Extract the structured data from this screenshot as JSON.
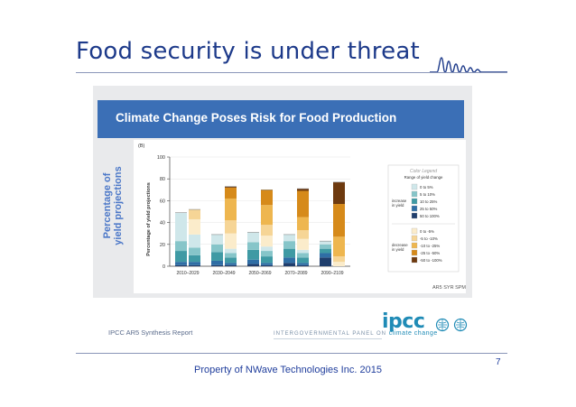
{
  "slide": {
    "title": "Food security is under threat",
    "footer": "Property of NWave Technologies Inc. 2015",
    "page_number": "7"
  },
  "panel": {
    "banner_title": "Climate Change Poses Risk for Food Production",
    "side_label": "Percentage of yield projections",
    "source_left": "IPCC AR5 Synthesis Report",
    "source_right": "AR5 SYR SPM",
    "org_text": "INTERGOVERNMENTAL PANEL ON",
    "org_text_accent": "climate change",
    "logo_text": "ipcc"
  },
  "colors": {
    "title_blue": "#1d3a8a",
    "banner_blue": "#3b6fb6",
    "inc_10_100": "#1f3e6d",
    "inc_25_50": "#2f6ea5",
    "inc_10_25": "#3f9aa4",
    "inc_5_10": "#86c5c9",
    "inc_0_5": "#cfe7ea",
    "dec_0_5": "#fbeccb",
    "dec_5_10": "#f6d596",
    "dec_10_25": "#eeb64f",
    "dec_25_50": "#d68a1a",
    "dec_50_100": "#6e3a0f"
  },
  "chart_data": {
    "type": "bar",
    "stacked": true,
    "panel_label": "(B)",
    "ylabel": "Percentage of yield projections",
    "ylim": [
      0,
      100
    ],
    "yticks": [
      0,
      20,
      40,
      60,
      80,
      100
    ],
    "categories": [
      "2010–2029",
      "2030–2049",
      "2050–2069",
      "2070–2089",
      "2090–2109"
    ],
    "groups": [
      "increase",
      "decrease"
    ],
    "series": [
      {
        "name": "50 to 100%",
        "group": "increase",
        "color_key": "inc_10_100",
        "values": [
          [
            1,
            1
          ],
          [
            1,
            1
          ],
          [
            2,
            1
          ],
          [
            3,
            1
          ],
          [
            8,
            0
          ]
        ]
      },
      {
        "name": "25 to 50%",
        "group": "increase",
        "color_key": "inc_25_50",
        "values": [
          [
            3,
            3
          ],
          [
            4,
            2
          ],
          [
            4,
            2
          ],
          [
            5,
            2
          ],
          [
            4,
            0
          ]
        ]
      },
      {
        "name": "10 to 25%",
        "group": "increase",
        "color_key": "inc_10_25",
        "values": [
          [
            10,
            6
          ],
          [
            8,
            5
          ],
          [
            9,
            6
          ],
          [
            8,
            5
          ],
          [
            4,
            0
          ]
        ]
      },
      {
        "name": "5 to 10%",
        "group": "increase",
        "color_key": "inc_5_10",
        "values": [
          [
            9,
            7
          ],
          [
            7,
            4
          ],
          [
            7,
            5
          ],
          [
            7,
            4
          ],
          [
            4,
            0
          ]
        ]
      },
      {
        "name": "0 to 5%",
        "group": "increase",
        "color_key": "inc_0_5",
        "values": [
          [
            26,
            12
          ],
          [
            9,
            4
          ],
          [
            9,
            4
          ],
          [
            6,
            3
          ],
          [
            3,
            0
          ]
        ]
      },
      {
        "name": "0 to -5%",
        "group": "decrease",
        "color_key": "dec_0_5",
        "values": [
          [
            0,
            14
          ],
          [
            0,
            14
          ],
          [
            0,
            10
          ],
          [
            0,
            10
          ],
          [
            0,
            4
          ]
        ]
      },
      {
        "name": "-5 to -10%",
        "group": "decrease",
        "color_key": "dec_5_10",
        "values": [
          [
            0,
            9
          ],
          [
            0,
            12
          ],
          [
            0,
            10
          ],
          [
            0,
            8
          ],
          [
            0,
            5
          ]
        ]
      },
      {
        "name": "-10 to -25%",
        "group": "decrease",
        "color_key": "dec_10_25",
        "values": [
          [
            0,
            0
          ],
          [
            0,
            20
          ],
          [
            0,
            18
          ],
          [
            0,
            12
          ],
          [
            0,
            18
          ]
        ]
      },
      {
        "name": "-25 to -50%",
        "group": "decrease",
        "color_key": "dec_25_50",
        "values": [
          [
            0,
            0
          ],
          [
            0,
            10
          ],
          [
            0,
            14
          ],
          [
            0,
            24
          ],
          [
            0,
            30
          ]
        ]
      },
      {
        "name": "-50 to -100%",
        "group": "decrease",
        "color_key": "dec_50_100",
        "values": [
          [
            0,
            0
          ],
          [
            0,
            1
          ],
          [
            0,
            0
          ],
          [
            0,
            2
          ],
          [
            0,
            20
          ]
        ]
      }
    ],
    "legend": {
      "title": "Color Legend",
      "subtitle": "Range of yield change",
      "increase_label": "increase in yield",
      "decrease_label": "decrease in yield"
    }
  }
}
